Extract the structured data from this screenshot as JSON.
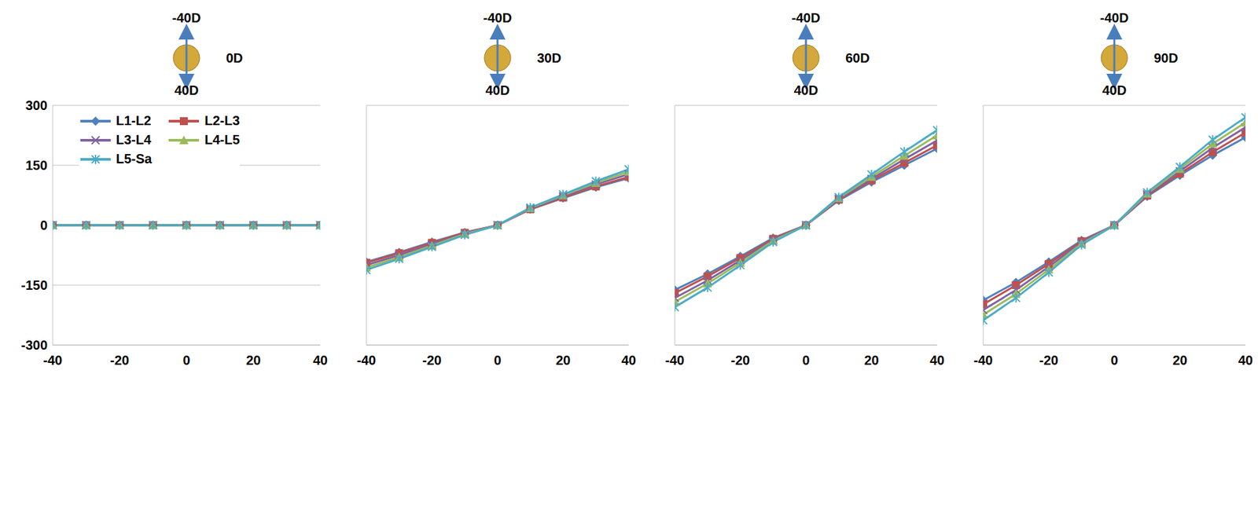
{
  "chart_data": [
    {
      "type": "line",
      "title": "0D",
      "direction_labels": [
        "-40D",
        "40D"
      ],
      "x": [
        -40,
        -30,
        -20,
        -10,
        0,
        10,
        20,
        30,
        40
      ],
      "xlim": [
        -40,
        40
      ],
      "xticks": [
        -40,
        -20,
        0,
        20,
        40
      ],
      "ylim": [
        -300,
        300
      ],
      "yticks": [
        -300,
        -150,
        0,
        150,
        300
      ],
      "grid": true,
      "tick_labels": true,
      "legend": "top-left",
      "series": [
        {
          "name": "L1-L2",
          "color": "#4f81bd",
          "marker": "diamond",
          "values": [
            0,
            0,
            0,
            0,
            0,
            0,
            0,
            0,
            0
          ]
        },
        {
          "name": "L2-L3",
          "color": "#c0504d",
          "marker": "square",
          "values": [
            0,
            0,
            0,
            0,
            0,
            0,
            0,
            0,
            0
          ]
        },
        {
          "name": "L3-L4",
          "color": "#8064a2",
          "marker": "cross",
          "values": [
            0,
            0,
            0,
            0,
            0,
            0,
            0,
            0,
            0
          ]
        },
        {
          "name": "L4-L5",
          "color": "#9bbb59",
          "marker": "triangle",
          "values": [
            0,
            0,
            0,
            0,
            0,
            0,
            0,
            0,
            0
          ]
        },
        {
          "name": "L5-Sa",
          "color": "#4bacc6",
          "marker": "star",
          "values": [
            0,
            0,
            0,
            0,
            0,
            0,
            0,
            0,
            0
          ]
        }
      ]
    },
    {
      "type": "line",
      "title": "30D",
      "direction_labels": [
        "-40D",
        "40D"
      ],
      "x": [
        -40,
        -30,
        -20,
        -10,
        0,
        10,
        20,
        30,
        40
      ],
      "xlim": [
        -40,
        40
      ],
      "xticks": [
        -40,
        -20,
        0,
        20,
        40
      ],
      "ylim": [
        -300,
        300
      ],
      "yticks": [
        -300,
        -150,
        0,
        150,
        300
      ],
      "grid": true,
      "tick_labels": "x",
      "series": [
        {
          "name": "L1-L2",
          "color": "#4f81bd",
          "marker": "diamond",
          "values": [
            -92,
            -68,
            -42,
            -18,
            0,
            40,
            68,
            95,
            118
          ]
        },
        {
          "name": "L2-L3",
          "color": "#c0504d",
          "marker": "square",
          "values": [
            -94,
            -70,
            -44,
            -19,
            0,
            40,
            69,
            97,
            121
          ]
        },
        {
          "name": "L3-L4",
          "color": "#8064a2",
          "marker": "cross",
          "values": [
            -100,
            -75,
            -48,
            -21,
            0,
            42,
            72,
            102,
            128
          ]
        },
        {
          "name": "L4-L5",
          "color": "#9bbb59",
          "marker": "triangle",
          "values": [
            -106,
            -80,
            -51,
            -22,
            0,
            43,
            75,
            106,
            134
          ]
        },
        {
          "name": "L5-Sa",
          "color": "#4bacc6",
          "marker": "star",
          "values": [
            -112,
            -84,
            -54,
            -24,
            0,
            44,
            77,
            110,
            140
          ]
        }
      ]
    },
    {
      "type": "line",
      "title": "60D",
      "direction_labels": [
        "-40D",
        "40D"
      ],
      "x": [
        -40,
        -30,
        -20,
        -10,
        0,
        10,
        20,
        30,
        40
      ],
      "xlim": [
        -40,
        40
      ],
      "xticks": [
        -40,
        -20,
        0,
        20,
        40
      ],
      "ylim": [
        -300,
        300
      ],
      "yticks": [
        -300,
        -150,
        0,
        150,
        300
      ],
      "grid": true,
      "tick_labels": "x",
      "series": [
        {
          "name": "L1-L2",
          "color": "#4f81bd",
          "marker": "diamond",
          "values": [
            -162,
            -122,
            -78,
            -32,
            0,
            62,
            108,
            150,
            192
          ]
        },
        {
          "name": "L2-L3",
          "color": "#c0504d",
          "marker": "square",
          "values": [
            -170,
            -128,
            -82,
            -34,
            0,
            64,
            112,
            156,
            200
          ]
        },
        {
          "name": "L3-L4",
          "color": "#8064a2",
          "marker": "cross",
          "values": [
            -182,
            -138,
            -88,
            -37,
            0,
            66,
            116,
            165,
            212
          ]
        },
        {
          "name": "L4-L5",
          "color": "#9bbb59",
          "marker": "triangle",
          "values": [
            -192,
            -146,
            -94,
            -39,
            0,
            68,
            121,
            174,
            225
          ]
        },
        {
          "name": "L5-Sa",
          "color": "#4bacc6",
          "marker": "star",
          "values": [
            -205,
            -156,
            -100,
            -42,
            0,
            70,
            127,
            184,
            238
          ]
        }
      ]
    },
    {
      "type": "line",
      "title": "90D",
      "direction_labels": [
        "-40D",
        "40D"
      ],
      "x": [
        -40,
        -30,
        -20,
        -10,
        0,
        10,
        20,
        30,
        40
      ],
      "xlim": [
        -40,
        40
      ],
      "xticks": [
        -40,
        -20,
        0,
        20,
        40
      ],
      "ylim": [
        -300,
        300
      ],
      "yticks": [
        -300,
        -150,
        0,
        150,
        300
      ],
      "grid": true,
      "tick_labels": "x",
      "series": [
        {
          "name": "L1-L2",
          "color": "#4f81bd",
          "marker": "diamond",
          "values": [
            -188,
            -143,
            -92,
            -38,
            0,
            72,
            125,
            175,
            220
          ]
        },
        {
          "name": "L2-L3",
          "color": "#c0504d",
          "marker": "square",
          "values": [
            -198,
            -150,
            -97,
            -40,
            0,
            74,
            129,
            183,
            232
          ]
        },
        {
          "name": "L3-L4",
          "color": "#8064a2",
          "marker": "cross",
          "values": [
            -212,
            -162,
            -104,
            -43,
            0,
            77,
            135,
            194,
            245
          ]
        },
        {
          "name": "L4-L5",
          "color": "#9bbb59",
          "marker": "triangle",
          "values": [
            -224,
            -172,
            -111,
            -46,
            0,
            79,
            141,
            204,
            257
          ]
        },
        {
          "name": "L5-Sa",
          "color": "#4bacc6",
          "marker": "star",
          "values": [
            -238,
            -182,
            -118,
            -49,
            0,
            82,
            146,
            214,
            270
          ]
        }
      ]
    }
  ]
}
